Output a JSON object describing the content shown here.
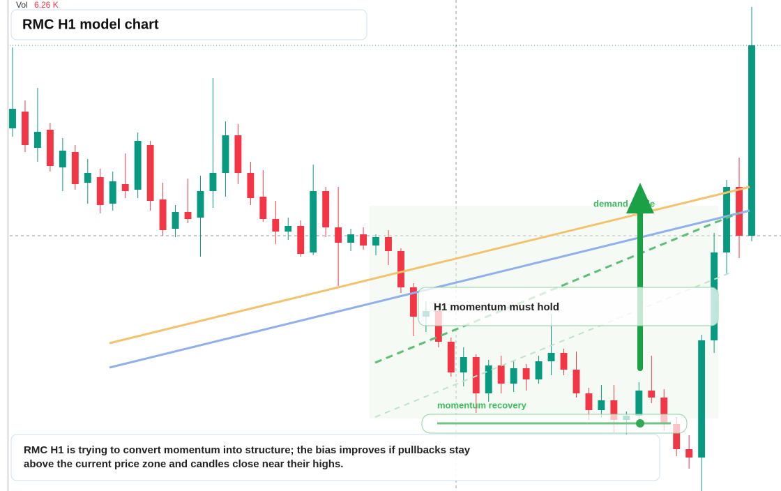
{
  "chart_data": {
    "type": "candlestick",
    "title": "RMC H1 model chart",
    "volume_label": "Vol",
    "volume_value": "6.26 K",
    "open": [
      52.0,
      54.4,
      49.2,
      51.8,
      46.4,
      48.6,
      44.2,
      45.0,
      41.2,
      44.0,
      43.2,
      49.6,
      41.8,
      37.6,
      40.0,
      39.2,
      43.0,
      45.6,
      51.0,
      45.6,
      42.2,
      39.0,
      37.2,
      38.0,
      34.2,
      43.0,
      37.8,
      35.6,
      36.8,
      35.2,
      36.4,
      34.4,
      29.2,
      25.0,
      25.8,
      21.4,
      17.0,
      19.2,
      14.0,
      18.0,
      15.4,
      17.6,
      16.0,
      18.6,
      19.8,
      17.4,
      14.0,
      11.6,
      13.0,
      10.2,
      10.8,
      14.4,
      13.4,
      9.6,
      6.0,
      4.8,
      21.6,
      34.2,
      43.6,
      36.6
    ],
    "high": [
      63.6,
      56.0,
      57.8,
      52.8,
      50.6,
      49.6,
      47.6,
      46.2,
      45.8,
      48.4,
      51.4,
      50.2,
      44.2,
      41.0,
      44.8,
      45.2,
      59.2,
      53.0,
      52.6,
      47.2,
      46.0,
      41.6,
      39.2,
      38.8,
      46.8,
      43.6,
      43.6,
      37.6,
      37.8,
      36.8,
      37.4,
      34.8,
      29.8,
      27.2,
      26.2,
      22.0,
      20.6,
      19.6,
      18.8,
      19.4,
      18.6,
      18.2,
      19.4,
      25.4,
      20.4,
      20.0,
      14.8,
      15.2,
      15.2,
      11.4,
      15.6,
      19.4,
      14.6,
      10.6,
      8.0,
      22.4,
      37.0,
      44.6,
      47.8,
      69.4
    ],
    "low": [
      50.8,
      48.6,
      47.2,
      45.8,
      43.0,
      43.2,
      41.2,
      39.8,
      40.2,
      42.0,
      42.0,
      40.2,
      36.6,
      36.4,
      38.4,
      33.6,
      40.6,
      42.2,
      44.0,
      41.0,
      38.6,
      35.4,
      36.0,
      33.6,
      33.8,
      36.4,
      29.4,
      34.4,
      34.6,
      33.8,
      32.4,
      28.4,
      22.2,
      22.8,
      20.6,
      16.4,
      15.0,
      11.2,
      12.8,
      14.0,
      14.2,
      14.4,
      15.4,
      16.6,
      16.6,
      13.4,
      10.2,
      10.6,
      8.4,
      8.0,
      9.6,
      12.6,
      8.6,
      5.0,
      3.2,
      0.0,
      19.8,
      31.0,
      33.4,
      35.8
    ],
    "close": [
      54.8,
      49.6,
      51.5,
      46.6,
      48.8,
      44.0,
      45.6,
      41.0,
      44.4,
      43.0,
      50.2,
      41.6,
      37.4,
      40.0,
      39.0,
      43.0,
      45.6,
      51.0,
      45.6,
      42.0,
      39.0,
      37.2,
      38.0,
      34.0,
      43.0,
      37.8,
      35.6,
      36.8,
      35.2,
      36.4,
      34.4,
      29.2,
      25.0,
      25.8,
      21.4,
      17.0,
      19.2,
      14.0,
      18.0,
      15.4,
      17.6,
      16.0,
      18.6,
      19.8,
      17.4,
      14.0,
      11.6,
      13.0,
      10.2,
      10.8,
      14.4,
      13.4,
      9.6,
      6.0,
      4.8,
      21.6,
      34.2,
      43.6,
      36.6,
      63.9
    ],
    "up_color": "#089981",
    "down_color": "#f23645",
    "ylim": [
      0,
      70.4
    ],
    "annotations": {
      "box": "H1 momentum must hold",
      "zone": "demand guide",
      "recovery": "momentum recovery",
      "note": "RMC H1 is trying to convert momentum into structure; the bias improves if pullbacks stay above the current price zone and candles close near their highs."
    }
  }
}
